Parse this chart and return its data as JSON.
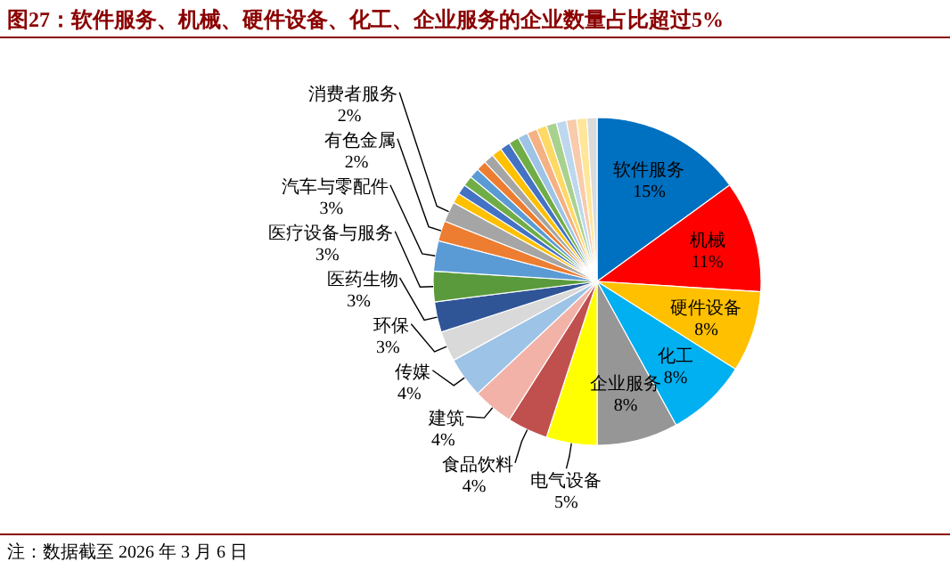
{
  "chart_data": {
    "type": "pie",
    "title": "图27：软件服务、机械、硬件设备、化工、企业服务的企业数量占比超过5%",
    "categories": [
      "软件服务",
      "机械",
      "硬件设备",
      "化工",
      "企业服务",
      "电气设备",
      "食品饮料",
      "建筑",
      "传媒",
      "环保",
      "医药生物",
      "医疗设备与服务",
      "汽车与零配件",
      "有色金属",
      "消费者服务",
      null,
      null,
      null,
      null,
      null,
      null,
      null,
      null,
      null,
      null,
      null,
      null,
      null,
      null,
      null,
      null,
      null
    ],
    "values": [
      15,
      11,
      8,
      8,
      8,
      5,
      4,
      4,
      4,
      3,
      3,
      3,
      3,
      2,
      2,
      1,
      1,
      1,
      1,
      1,
      1,
      1,
      1,
      1,
      1,
      1,
      1,
      1,
      1,
      1,
      1,
      1
    ],
    "colors": [
      "#0070c0",
      "#ff0000",
      "#ffc000",
      "#00b0f0",
      "#969696",
      "#ffff00",
      "#c0504d",
      "#f2b2a8",
      "#9dc3e6",
      "#d9d9d9",
      "#2f5597",
      "#5b9a3c",
      "#5b9bd5",
      "#ed7d31",
      "#a5a5a5",
      "#ffc000",
      "#4472c4",
      "#70ad47",
      "#5b9bd5",
      "#ed7d31",
      "#a5a5a5",
      "#ffc000",
      "#4472c4",
      "#70ad47",
      "#9dc3e6",
      "#f4b183",
      "#ffd966",
      "#a9d18e",
      "#bdd7ee",
      "#f8cbad",
      "#ffe699",
      "#dbdbdb"
    ],
    "value_labels": [
      "15%",
      "11%",
      "8%",
      "8%",
      "8%",
      "5%",
      "4%",
      "4%",
      "4%",
      "3%",
      "3%",
      "3%",
      "3%",
      "2%",
      "2%",
      null,
      null,
      null,
      null,
      null,
      null,
      null,
      null,
      null,
      null,
      null,
      null,
      null,
      null,
      null,
      null,
      null
    ],
    "annotations": [
      "注：数据截至 2026 年 3 月 6 日"
    ]
  }
}
